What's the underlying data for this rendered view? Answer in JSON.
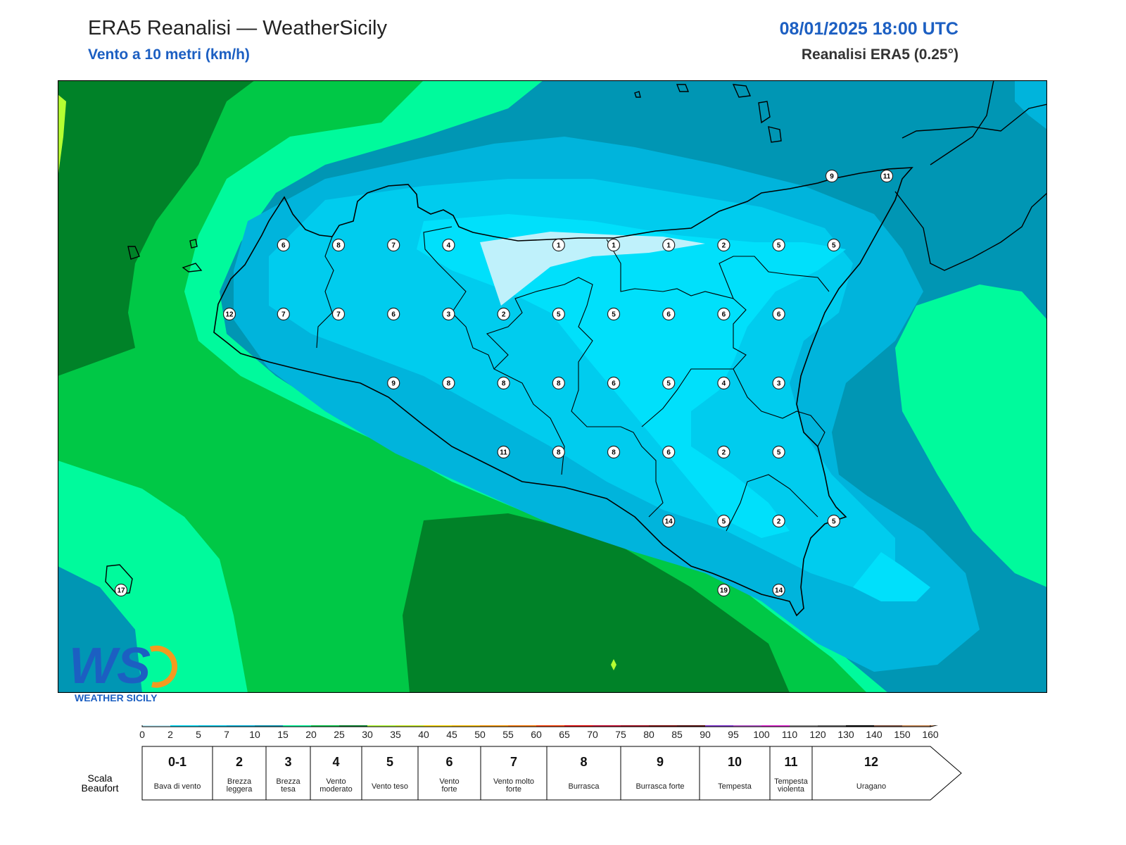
{
  "header": {
    "title": "ERA5 Reanalisi — WeatherSicily",
    "subtitle": "Vento a 10 metri (km/h)",
    "datetime": "08/01/2025 18:00 UTC",
    "source": "Reanalisi ERA5 (0.25°)"
  },
  "wind_speed_labels_kmh": [
    {
      "value": "6",
      "ix": 4,
      "iy": 0
    },
    {
      "value": "8",
      "ix": 5,
      "iy": 0
    },
    {
      "value": "7",
      "ix": 6,
      "iy": 0
    },
    {
      "value": "4",
      "ix": 7,
      "iy": 0
    },
    {
      "value": "1",
      "ix": 9,
      "iy": 0
    },
    {
      "value": "1",
      "ix": 10,
      "iy": 0
    },
    {
      "value": "1",
      "ix": 11,
      "iy": 0
    },
    {
      "value": "2",
      "ix": 12,
      "iy": 0
    },
    {
      "value": "5",
      "ix": 13,
      "iy": 0
    },
    {
      "value": "5",
      "ix": 14,
      "iy": 0
    },
    {
      "value": "12",
      "ix": 3,
      "iy": 1
    },
    {
      "value": "7",
      "ix": 4,
      "iy": 1
    },
    {
      "value": "7",
      "ix": 5,
      "iy": 1
    },
    {
      "value": "6",
      "ix": 6,
      "iy": 1
    },
    {
      "value": "3",
      "ix": 7,
      "iy": 1
    },
    {
      "value": "2",
      "ix": 8,
      "iy": 1
    },
    {
      "value": "5",
      "ix": 9,
      "iy": 1
    },
    {
      "value": "5",
      "ix": 10,
      "iy": 1
    },
    {
      "value": "6",
      "ix": 11,
      "iy": 1
    },
    {
      "value": "6",
      "ix": 12,
      "iy": 1
    },
    {
      "value": "6",
      "ix": 13,
      "iy": 1
    },
    {
      "value": "9",
      "ix": 6,
      "iy": 2
    },
    {
      "value": "8",
      "ix": 7,
      "iy": 2
    },
    {
      "value": "8",
      "ix": 8,
      "iy": 2
    },
    {
      "value": "8",
      "ix": 9,
      "iy": 2
    },
    {
      "value": "6",
      "ix": 10,
      "iy": 2
    },
    {
      "value": "5",
      "ix": 11,
      "iy": 2
    },
    {
      "value": "4",
      "ix": 12,
      "iy": 2
    },
    {
      "value": "3",
      "ix": 13,
      "iy": 2
    },
    {
      "value": "11",
      "ix": 8,
      "iy": 3
    },
    {
      "value": "8",
      "ix": 9,
      "iy": 3
    },
    {
      "value": "8",
      "ix": 10,
      "iy": 3
    },
    {
      "value": "6",
      "ix": 11,
      "iy": 3
    },
    {
      "value": "2",
      "ix": 12,
      "iy": 3
    },
    {
      "value": "5",
      "ix": 13,
      "iy": 3
    },
    {
      "value": "14",
      "ix": 11,
      "iy": 4
    },
    {
      "value": "5",
      "ix": 12,
      "iy": 4
    },
    {
      "value": "2",
      "ix": 13,
      "iy": 4
    },
    {
      "value": "5",
      "ix": 14,
      "iy": 4
    },
    {
      "value": "19",
      "ix": 12,
      "iy": 5
    },
    {
      "value": "14",
      "ix": 13,
      "iy": 5
    },
    {
      "value": "17",
      "ix": 1,
      "iy": 5
    },
    {
      "value": "9",
      "ix": 14,
      "iy": -1
    },
    {
      "value": "11",
      "ix": 15,
      "iy": -1
    }
  ],
  "colorbar": {
    "ticks": [
      "0",
      "2",
      "5",
      "7",
      "10",
      "15",
      "20",
      "25",
      "30",
      "35",
      "40",
      "45",
      "50",
      "55",
      "60",
      "65",
      "70",
      "75",
      "80",
      "85",
      "90",
      "95",
      "100",
      "110",
      "120",
      "130",
      "140",
      "150",
      "160"
    ],
    "colors": [
      "#bff1fb",
      "#00e0fb",
      "#00ccee",
      "#00b4dc",
      "#0096b4",
      "#00fa9c",
      "#00c846",
      "#008228",
      "#b4ff32",
      "#ccf01e",
      "#ffdd00",
      "#ffc200",
      "#ff9b00",
      "#ff7800",
      "#ff3c00",
      "#e60000",
      "#c80028",
      "#a00014",
      "#780000",
      "#500000",
      "#7c2cd0",
      "#b44ccc",
      "#e01cd0",
      "#808080",
      "#5a5a5a",
      "#000000",
      "#784632",
      "#c8824b"
    ]
  },
  "beaufort": {
    "label": "Scala Beaufort",
    "classes": [
      {
        "num": "0-1",
        "desc": "Bava di vento"
      },
      {
        "num": "2",
        "desc": "Brezza leggera"
      },
      {
        "num": "3",
        "desc": "Brezza tesa"
      },
      {
        "num": "4",
        "desc": "Vento moderato"
      },
      {
        "num": "5",
        "desc": "Vento teso"
      },
      {
        "num": "6",
        "desc": "Vento forte"
      },
      {
        "num": "7",
        "desc": "Vento molto forte"
      },
      {
        "num": "8",
        "desc": "Burrasca"
      },
      {
        "num": "9",
        "desc": "Burrasca forte"
      },
      {
        "num": "10",
        "desc": "Tempesta"
      },
      {
        "num": "11",
        "desc": "Tempesta violenta"
      },
      {
        "num": "12",
        "desc": "Uragano"
      }
    ]
  },
  "logo": {
    "text": "WEATHER SICILY",
    "mark": "WS"
  }
}
